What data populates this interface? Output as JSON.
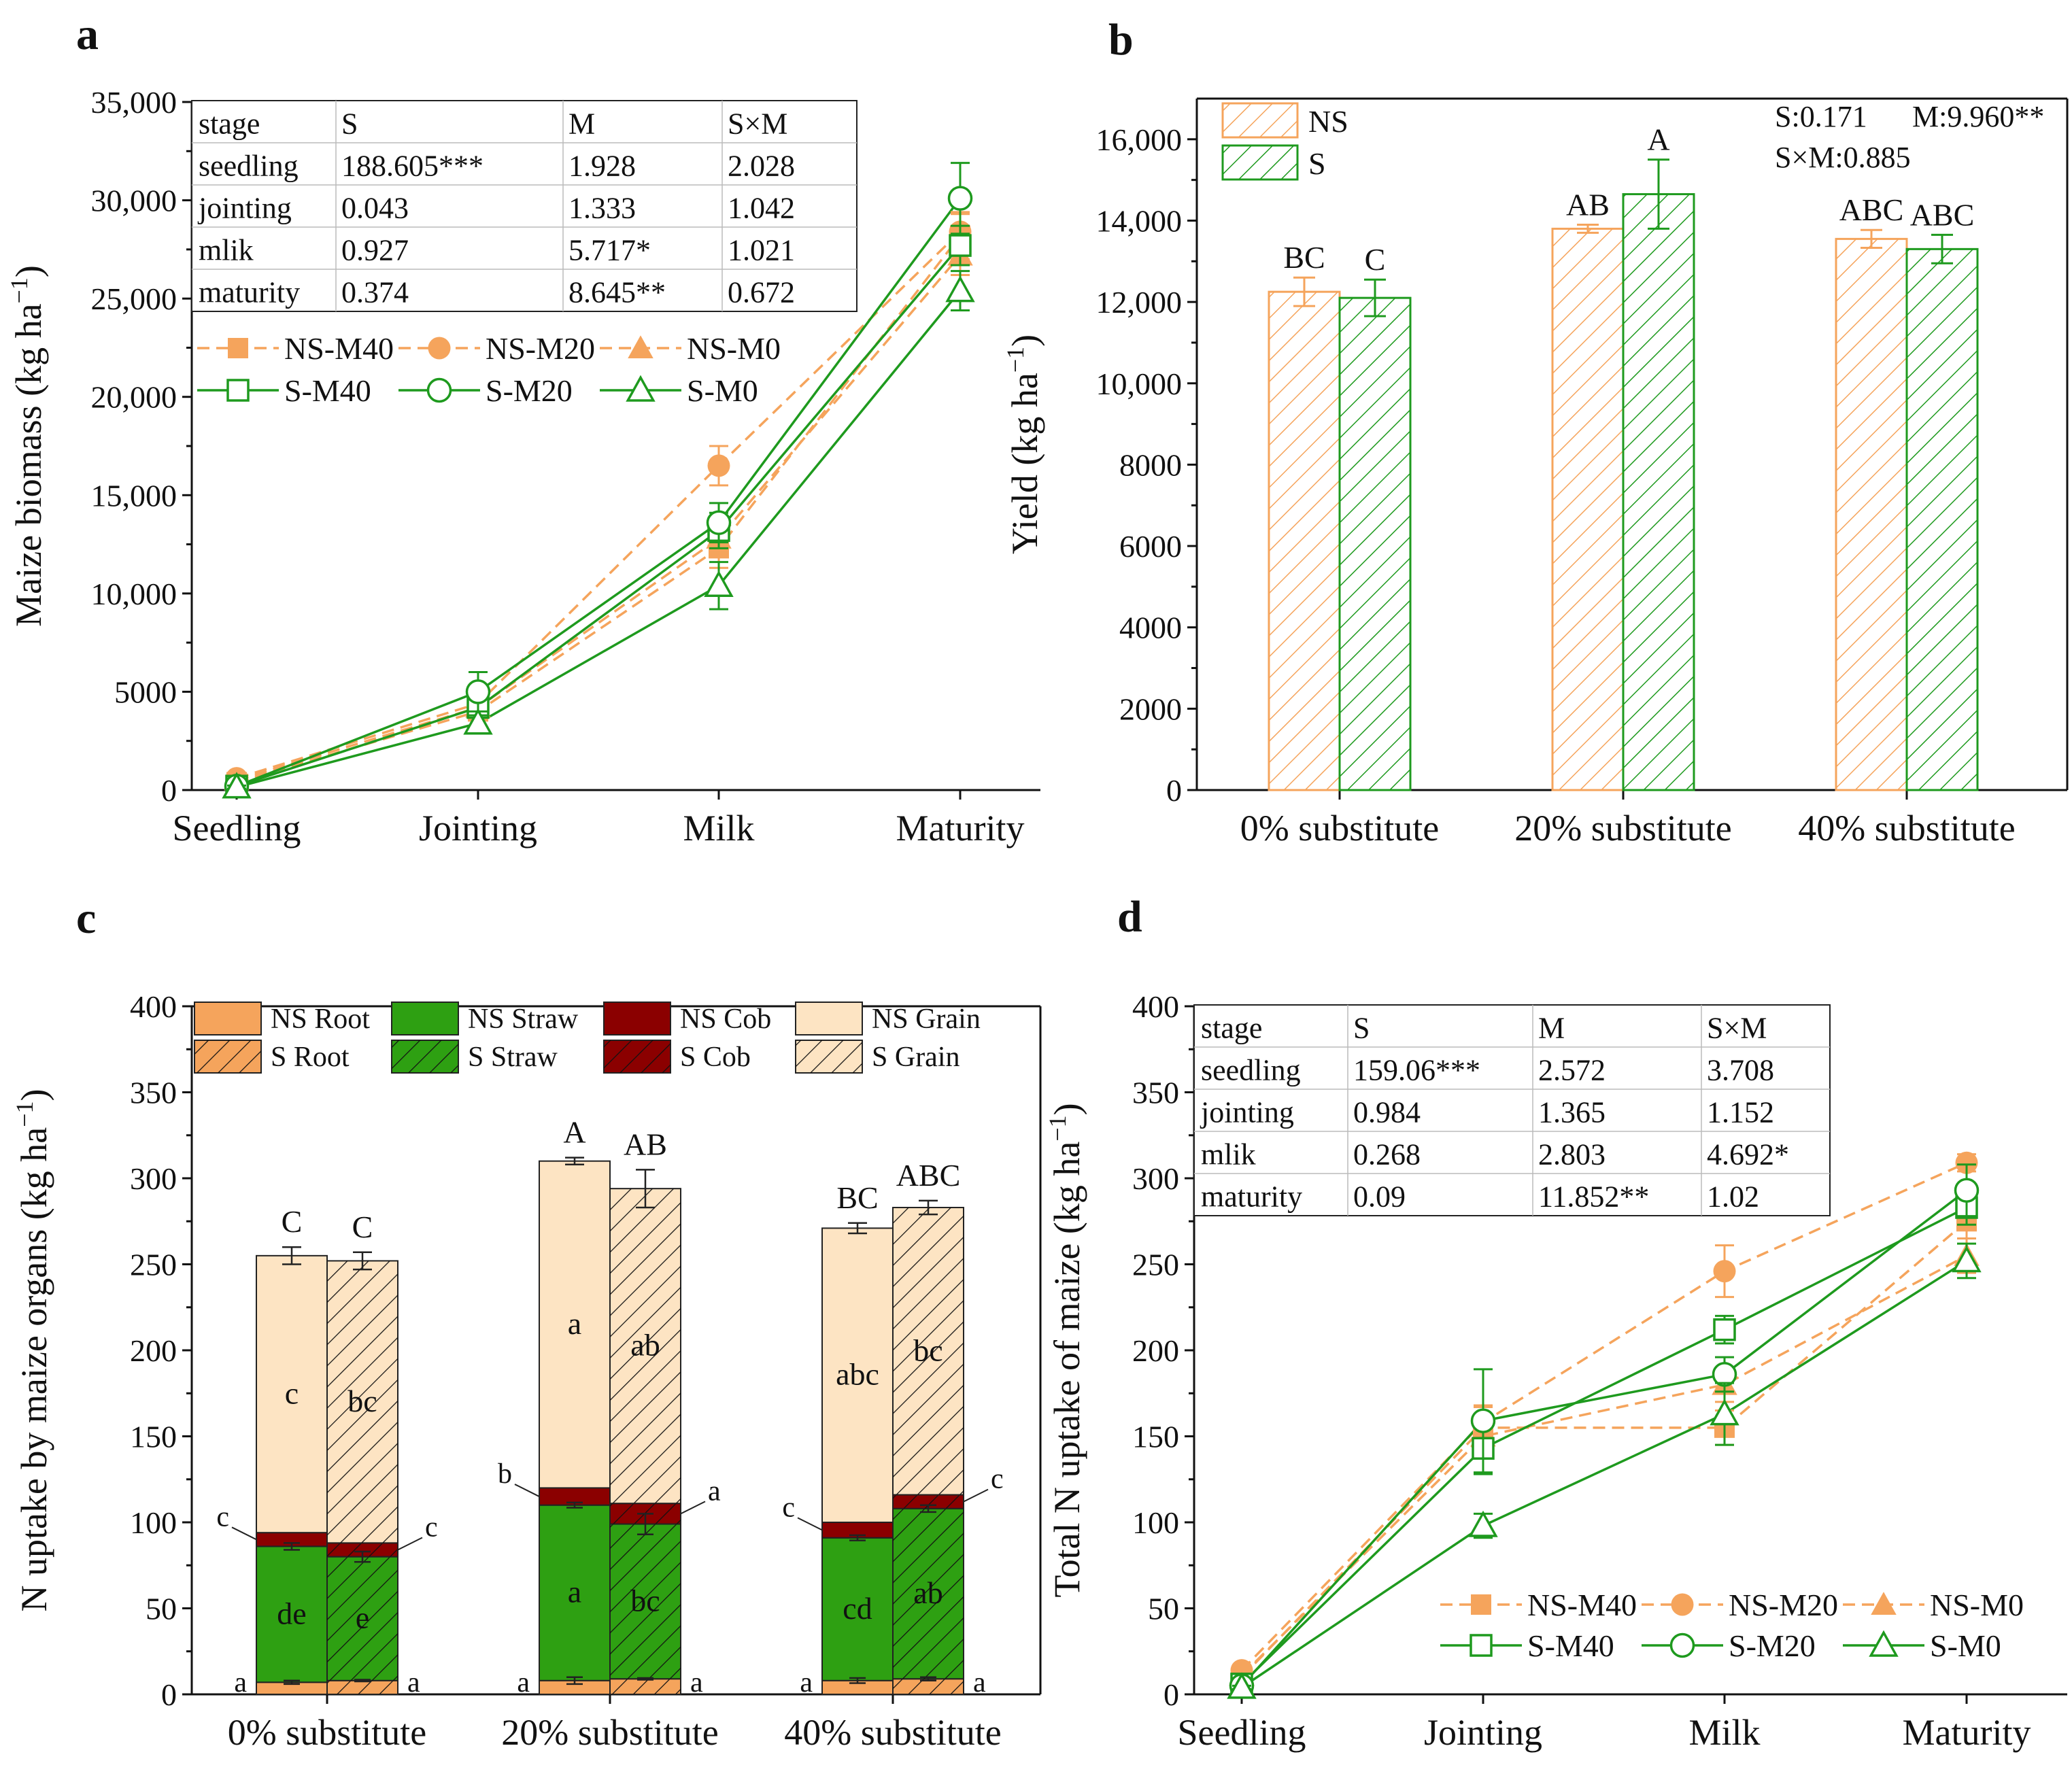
{
  "colors": {
    "ns": "#f5a45c",
    "s": "#1e9a1e",
    "root": "#f5a45c",
    "straw": "#2ea012",
    "cob": "#8b0000",
    "grain": "#fde4c3",
    "axis": "#111111"
  },
  "chart_data": [
    {
      "panel": "a",
      "type": "line",
      "ylabel": "Maize biomass (kg ha⁻¹)",
      "xlabel": "",
      "categories": [
        "Seedling",
        "Jointing",
        "Milk",
        "Maturity"
      ],
      "ylim": [
        0,
        35000
      ],
      "yticks": [
        0,
        5000,
        10000,
        15000,
        20000,
        25000,
        30000,
        35000
      ],
      "ytick_labels": [
        "0",
        "5000",
        "10,000",
        "15,000",
        "20,000",
        "25,000",
        "30,000",
        "35,000"
      ],
      "series": [
        {
          "name": "NS-M40",
          "group": "NS",
          "marker": "square",
          "filled": true,
          "values": [
            400,
            4000,
            12300,
            28200
          ],
          "err": [
            120,
            400,
            1000,
            1200
          ]
        },
        {
          "name": "NS-M20",
          "group": "NS",
          "marker": "circle",
          "filled": true,
          "values": [
            600,
            4400,
            16500,
            28400
          ],
          "err": [
            150,
            500,
            1000,
            900
          ]
        },
        {
          "name": "NS-M0",
          "group": "NS",
          "marker": "triangle",
          "filled": true,
          "values": [
            500,
            4200,
            12800,
            27200
          ],
          "err": [
            120,
            400,
            900,
            1000
          ]
        },
        {
          "name": "S-M40",
          "group": "S",
          "marker": "square",
          "filled": false,
          "values": [
            200,
            4200,
            13200,
            27700
          ],
          "err": [
            100,
            500,
            900,
            1000
          ]
        },
        {
          "name": "S-M20",
          "group": "S",
          "marker": "circle",
          "filled": false,
          "values": [
            200,
            5000,
            13600,
            30100
          ],
          "err": [
            100,
            1000,
            1000,
            1800
          ]
        },
        {
          "name": "S-M0",
          "group": "S",
          "marker": "triangle",
          "filled": false,
          "values": [
            150,
            3400,
            10400,
            25400
          ],
          "err": [
            80,
            400,
            1200,
            1000
          ]
        }
      ],
      "stats_table": {
        "header": [
          "stage",
          "S",
          "M",
          "S×M"
        ],
        "rows": [
          [
            "seedling",
            "188.605***",
            "1.928",
            "2.028"
          ],
          [
            "jointing",
            "0.043",
            "1.333",
            "1.042"
          ],
          [
            "mlik",
            "0.927",
            "5.717*",
            "1.021"
          ],
          [
            "maturity",
            "0.374",
            "8.645**",
            "0.672"
          ]
        ]
      }
    },
    {
      "panel": "b",
      "type": "bar",
      "ylabel": "Yield (kg ha⁻¹)",
      "categories": [
        "0% substitute",
        "20% substitute",
        "40% substitute"
      ],
      "ylim": [
        0,
        17000
      ],
      "yticks": [
        0,
        2000,
        4000,
        6000,
        8000,
        10000,
        12000,
        14000,
        16000
      ],
      "ytick_labels": [
        "0",
        "2000",
        "4000",
        "6000",
        "8000",
        "10,000",
        "12,000",
        "14,000",
        "16,000"
      ],
      "series": [
        {
          "name": "NS",
          "values": [
            12250,
            13800,
            13550
          ],
          "err": [
            350,
            100,
            220
          ],
          "letters": [
            "BC",
            "AB",
            "ABC"
          ]
        },
        {
          "name": "S",
          "values": [
            12100,
            14650,
            13300
          ],
          "err": [
            450,
            850,
            350
          ],
          "letters": [
            "C",
            "A",
            "ABC"
          ]
        }
      ],
      "annotations": [
        "S:0.171",
        "M:9.960**",
        "S×M:0.885"
      ]
    },
    {
      "panel": "c",
      "type": "bar",
      "stacked": true,
      "ylabel": "N uptake by maize organs (kg ha⁻¹)",
      "categories": [
        "0% substitute",
        "20% substitute",
        "40% substitute"
      ],
      "ylim": [
        0,
        400
      ],
      "yticks": [
        0,
        50,
        100,
        150,
        200,
        250,
        300,
        350,
        400
      ],
      "legend": [
        "NS Root",
        "NS Straw",
        "NS Cob",
        "NS Grain",
        "S Root",
        "S Straw",
        "S Cob",
        "S Grain"
      ],
      "groups": [
        {
          "name": "NS",
          "root": [
            7,
            8,
            8
          ],
          "straw": [
            86,
            110,
            91
          ],
          "cob": [
            94,
            120,
            100
          ],
          "total": [
            255,
            310,
            271
          ],
          "err_root": [
            1,
            2,
            1.5
          ],
          "err_straw": [
            2,
            1.5,
            1.5
          ],
          "err_total": [
            5,
            2,
            3
          ],
          "letters_total": [
            "C",
            "A",
            "BC"
          ],
          "letters_grain": [
            "c",
            "a",
            "abc"
          ],
          "letters_straw": [
            "de",
            "a",
            "cd"
          ],
          "letters_cob": [
            "c",
            "b",
            "c"
          ],
          "letters_root": [
            "a",
            "a",
            "a"
          ]
        },
        {
          "name": "S",
          "root": [
            8,
            9,
            9
          ],
          "straw": [
            80,
            99,
            108
          ],
          "cob": [
            88,
            111,
            116
          ],
          "total": [
            252,
            294,
            283
          ],
          "err_root": [
            0.5,
            0.5,
            1
          ],
          "err_straw": [
            3,
            6,
            2
          ],
          "err_total": [
            5,
            11,
            4
          ],
          "letters_total": [
            "C",
            "AB",
            "ABC"
          ],
          "letters_grain": [
            "bc",
            "ab",
            "bc"
          ],
          "letters_straw": [
            "e",
            "bc",
            "ab"
          ],
          "letters_cob": [
            "c",
            "a",
            "c"
          ],
          "letters_root": [
            "a",
            "a",
            "a"
          ]
        }
      ]
    },
    {
      "panel": "d",
      "type": "line",
      "ylabel": "Total N uptake of maize (kg ha⁻¹)",
      "categories": [
        "Seedling",
        "Jointing",
        "Milk",
        "Maturity"
      ],
      "ylim": [
        0,
        400
      ],
      "yticks": [
        0,
        50,
        100,
        150,
        200,
        250,
        300,
        350,
        400
      ],
      "series": [
        {
          "name": "NS-M40",
          "group": "NS",
          "marker": "square",
          "filled": true,
          "values": [
            10,
            155,
            155,
            275
          ],
          "err": [
            2,
            12,
            10,
            10
          ]
        },
        {
          "name": "NS-M20",
          "group": "NS",
          "marker": "circle",
          "filled": true,
          "values": [
            14,
            158,
            246,
            309
          ],
          "err": [
            3,
            10,
            15,
            5
          ]
        },
        {
          "name": "NS-M0",
          "group": "NS",
          "marker": "triangle",
          "filled": true,
          "values": [
            11,
            150,
            180,
            255
          ],
          "err": [
            2,
            10,
            10,
            10
          ]
        },
        {
          "name": "S-M40",
          "group": "S",
          "marker": "square",
          "filled": false,
          "values": [
            6,
            143,
            212,
            283
          ],
          "err": [
            1,
            15,
            8,
            10
          ]
        },
        {
          "name": "S-M20",
          "group": "S",
          "marker": "circle",
          "filled": false,
          "values": [
            5,
            159,
            186,
            293
          ],
          "err": [
            1,
            30,
            10,
            15
          ]
        },
        {
          "name": "S-M0",
          "group": "S",
          "marker": "triangle",
          "filled": false,
          "values": [
            4,
            98,
            163,
            252
          ],
          "err": [
            1,
            7,
            18,
            10
          ]
        }
      ],
      "stats_table": {
        "header": [
          "stage",
          "S",
          "M",
          "S×M"
        ],
        "rows": [
          [
            "seedling",
            "159.06***",
            "2.572",
            "3.708"
          ],
          [
            "jointing",
            "0.984",
            "1.365",
            "1.152"
          ],
          [
            "mlik",
            "0.268",
            "2.803",
            "4.692*"
          ],
          [
            "maturity",
            "0.09",
            "11.852**",
            "1.02"
          ]
        ]
      }
    }
  ]
}
